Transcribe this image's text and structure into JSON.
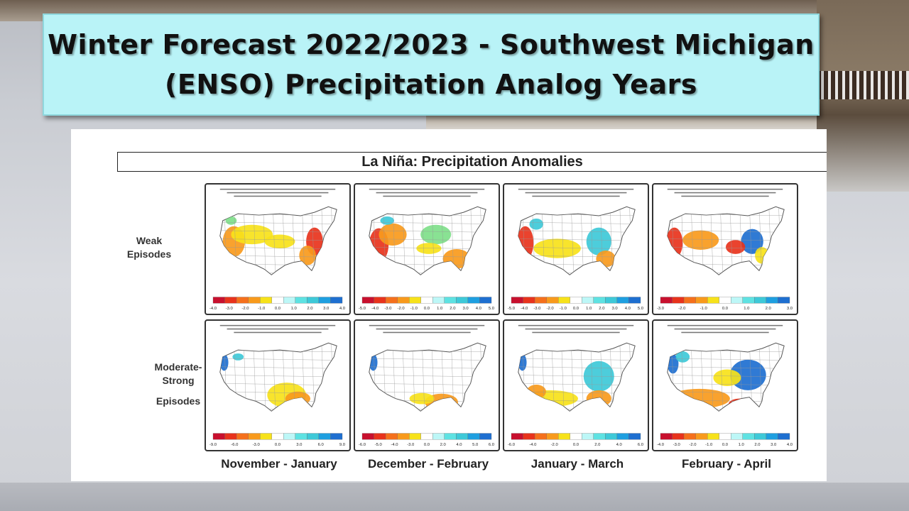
{
  "title": {
    "line1": "Winter Forecast 2022/2023 - Southwest Michigan",
    "line2": "(ENSO)  Precipitation Analog Years"
  },
  "panel": {
    "header": "La Niña: Precipitation Anomalies",
    "rows": [
      {
        "label_lines": [
          "Weak",
          "Episodes"
        ]
      },
      {
        "label_lines": [
          "Moderate-",
          "Strong",
          "",
          "Episodes"
        ]
      }
    ],
    "columns": [
      "November - January",
      "December - February",
      "January - March",
      "February - April"
    ],
    "maps": [
      {
        "scale": [
          "-4.0",
          "-3.0",
          "-2.0",
          "-1.0",
          "0.0",
          "1.0",
          "2.0",
          "3.0",
          "4.0"
        ]
      },
      {
        "scale": [
          "-5.0",
          "-4.0",
          "-3.0",
          "-2.0",
          "-1.0",
          "0.0",
          "1.0",
          "2.0",
          "3.0",
          "4.0",
          "5.0"
        ]
      },
      {
        "scale": [
          "-5.0",
          "-4.0",
          "-3.0",
          "-2.0",
          "-1.0",
          "0.0",
          "1.0",
          "2.0",
          "3.0",
          "4.0",
          "5.0"
        ]
      },
      {
        "scale": [
          "-3.0",
          "-2.0",
          "-1.0",
          "0.0",
          "1.0",
          "2.0",
          "3.0"
        ]
      },
      {
        "scale": [
          "-9.0",
          "-6.0",
          "-3.0",
          "0.0",
          "3.0",
          "6.0",
          "9.0"
        ]
      },
      {
        "scale": [
          "-6.0",
          "-5.0",
          "-4.0",
          "-3.0",
          "0.0",
          "2.0",
          "4.0",
          "5.0",
          "6.0"
        ]
      },
      {
        "scale": [
          "-6.0",
          "-4.0",
          "-2.0",
          "0.0",
          "2.0",
          "4.0",
          "6.0"
        ]
      },
      {
        "scale": [
          "-4.0",
          "-3.0",
          "-2.0",
          "-1.0",
          "0.0",
          "1.0",
          "2.0",
          "3.0",
          "4.0"
        ]
      }
    ]
  },
  "colors": {
    "title_bg": "#b9f3f7",
    "dry_strong": "#e8331c",
    "dry": "#f89a1c",
    "dry_light": "#f7e21a",
    "neutral": "#ffffff",
    "wet_light": "#7fe08a",
    "wet": "#3ec9d8",
    "wet_strong": "#1e6fd0"
  }
}
